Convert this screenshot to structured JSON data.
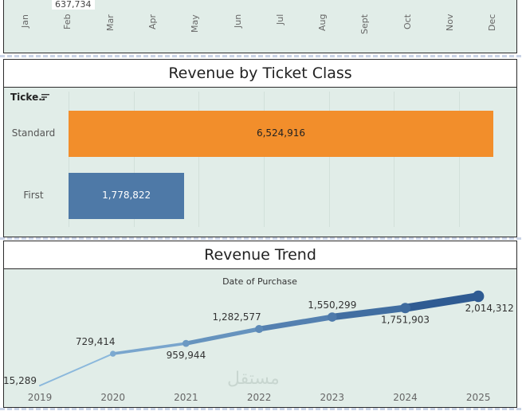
{
  "top_chart": {
    "visible_value": "637,734",
    "months": [
      "Jan",
      "Feb",
      "Mar",
      "Apr",
      "May",
      "Jun",
      "Jul",
      "Aug",
      "Sept",
      "Oct",
      "Nov",
      "Dec"
    ]
  },
  "ticket_panel": {
    "title": "Revenue by Ticket Class",
    "header": "Ticke..",
    "sort_icon": "sort-descending-icon"
  },
  "trend_panel": {
    "title": "Revenue Trend",
    "subtitle": "Date of Purchase"
  },
  "watermark": "مستقل",
  "colors": {
    "panel_bg": "#e1ede8",
    "standard_bar": "#f28e2b",
    "first_bar": "#4e79a7",
    "line_light": "#8bb8dc",
    "line_dark": "#2f5b92"
  },
  "chart_data": [
    {
      "type": "bar",
      "title": "Revenue by Ticket Class",
      "categories": [
        "Standard",
        "First"
      ],
      "values": [
        6524916,
        1778822
      ],
      "value_labels": [
        "6,524,916",
        "1,778,822"
      ],
      "xlim": [
        0,
        6600000
      ],
      "grid": true
    },
    {
      "type": "line",
      "title": "Revenue Trend",
      "xlabel": "Date of Purchase",
      "x": [
        "2019",
        "2020",
        "2021",
        "2022",
        "2023",
        "2024",
        "2025"
      ],
      "values": [
        15289,
        729414,
        959944,
        1282577,
        1550299,
        1751903,
        2014312
      ],
      "value_labels": [
        "15,289",
        "729,414",
        "959,944",
        "1,282,577",
        "1,550,299",
        "1,751,903",
        "2,014,312"
      ],
      "label_position": [
        "below",
        "above",
        "below",
        "above",
        "above",
        "below",
        "below"
      ],
      "ylim": [
        0,
        2250000
      ],
      "grid": false
    }
  ]
}
